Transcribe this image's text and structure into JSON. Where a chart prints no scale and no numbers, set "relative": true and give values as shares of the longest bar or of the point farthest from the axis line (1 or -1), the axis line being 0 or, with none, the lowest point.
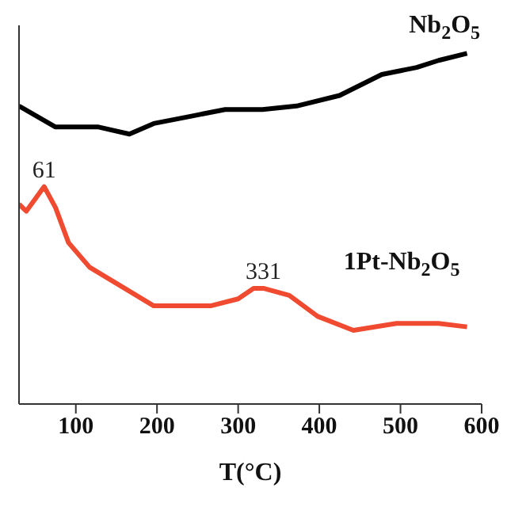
{
  "chart_data": {
    "type": "line",
    "relative": true,
    "xlabel": "T(°C)",
    "xlim": [
      30,
      600
    ],
    "xticks": [
      100,
      200,
      300,
      400,
      500,
      600
    ],
    "marker": "none",
    "line_style": "solid",
    "annotations": [
      {
        "text": "61",
        "x": 61,
        "y": 0.62
      },
      {
        "text": "331",
        "x": 331,
        "y": 0.33
      }
    ],
    "series": [
      {
        "name": "Nb$_{2}$O$_{5}$",
        "color": "#000000",
        "x": [
          30,
          75,
          128,
          166,
          196,
          240,
          284,
          330,
          372,
          425,
          477,
          520,
          547,
          582
        ],
        "values": [
          0.85,
          0.79,
          0.79,
          0.77,
          0.8,
          0.82,
          0.84,
          0.84,
          0.85,
          0.88,
          0.94,
          0.96,
          0.98,
          1
        ]
      },
      {
        "name": "1Pt-Nb$_{2}$O$_{5}$",
        "color": "#f04a30",
        "x": [
          30,
          39,
          61,
          75,
          91,
          117,
          160,
          196,
          266,
          300,
          319,
          331,
          363,
          398,
          442,
          495,
          547,
          582
        ],
        "values": [
          0.57,
          0.55,
          0.62,
          0.56,
          0.46,
          0.39,
          0.33,
          0.28,
          0.28,
          0.3,
          0.33,
          0.33,
          0.31,
          0.25,
          0.21,
          0.23,
          0.23,
          0.22
        ]
      }
    ]
  }
}
